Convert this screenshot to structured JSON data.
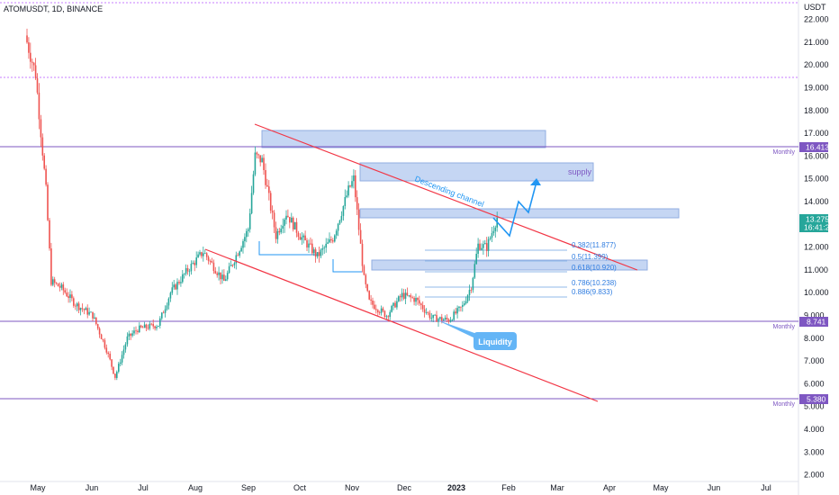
{
  "header": {
    "symbol_label": "ATOMUSDT, 1D, BINANCE"
  },
  "price_axis": {
    "currency": "USDT",
    "ticks": [
      "22.000",
      "21.000",
      "20.000",
      "19.000",
      "18.000",
      "17.000",
      "16.000",
      "15.000",
      "14.000",
      "13.000",
      "12.000",
      "11.000",
      "10.000",
      "9.000",
      "8.000",
      "7.000",
      "6.000",
      "5.000",
      "4.000",
      "3.000",
      "2.000"
    ]
  },
  "time_axis": {
    "ticks": [
      "May",
      "Jun",
      "Jul",
      "Aug",
      "Sep",
      "Oct",
      "Nov",
      "Dec",
      "2023",
      "Feb",
      "Mar",
      "Apr",
      "May",
      "Jun",
      "Jul"
    ]
  },
  "current_price": {
    "value": "13.275",
    "countdown": "16:41:24",
    "color": "#26a69a"
  },
  "levels": [
    {
      "value": "16.413",
      "tag": "Monthly",
      "color": "#7e57c2"
    },
    {
      "value": "8.741",
      "tag": "Monthly",
      "color": "#7e57c2"
    },
    {
      "value": "5.380",
      "tag": "Monthly",
      "color": "#7e57c2"
    }
  ],
  "fib_labels": [
    "0.382(11.877)",
    "0.5(11.399)",
    "0.618(10.920)",
    "0.786(10.238)",
    "0.886(9.833)"
  ],
  "annotations": {
    "supply": "supply",
    "channel": "Descending channel",
    "liquidity": "Liquidity"
  },
  "colors": {
    "up": "#26a69a",
    "down": "#ef5350",
    "channel": "#f23645",
    "zone_fill": "#bbd0f2",
    "zone_stroke": "#7e9fdc",
    "level": "#7e57c2",
    "projection": "#2196f3",
    "fib": "#90b8e8"
  },
  "chart_data": {
    "type": "candlestick",
    "symbol": "ATOMUSDT",
    "interval": "1D",
    "exchange": "BINANCE",
    "ylim": [
      1.8,
      22.8
    ],
    "closes": [
      {
        "x": "Apr 28",
        "y": 21.0
      },
      {
        "x": "May 3",
        "y": 19.6
      },
      {
        "x": "May 9",
        "y": 14.5
      },
      {
        "x": "May 12",
        "y": 10.5
      },
      {
        "x": "May 18",
        "y": 10.2
      },
      {
        "x": "May 26",
        "y": 9.5
      },
      {
        "x": "Jun 5",
        "y": 9.0
      },
      {
        "x": "Jun 13",
        "y": 7.5
      },
      {
        "x": "Jun 18",
        "y": 6.3
      },
      {
        "x": "Jun 25",
        "y": 8.0
      },
      {
        "x": "Jul 1",
        "y": 8.4
      },
      {
        "x": "Jul 13",
        "y": 8.6
      },
      {
        "x": "Jul 20",
        "y": 10.0
      },
      {
        "x": "Jul 30",
        "y": 11.0
      },
      {
        "x": "Aug 8",
        "y": 11.8
      },
      {
        "x": "Aug 20",
        "y": 10.5
      },
      {
        "x": "Aug 28",
        "y": 11.8
      },
      {
        "x": "Sep 3",
        "y": 12.8
      },
      {
        "x": "Sep 7",
        "y": 16.0
      },
      {
        "x": "Sep 11",
        "y": 15.8
      },
      {
        "x": "Sep 19",
        "y": 12.5
      },
      {
        "x": "Sep 25",
        "y": 13.5
      },
      {
        "x": "Oct 3",
        "y": 12.5
      },
      {
        "x": "Oct 13",
        "y": 11.6
      },
      {
        "x": "Oct 22",
        "y": 12.4
      },
      {
        "x": "Oct 31",
        "y": 14.5
      },
      {
        "x": "Nov 3",
        "y": 15.0
      },
      {
        "x": "Nov 9",
        "y": 10.6
      },
      {
        "x": "Nov 12",
        "y": 9.6
      },
      {
        "x": "Nov 22",
        "y": 9.0
      },
      {
        "x": "Dec 1",
        "y": 9.9
      },
      {
        "x": "Dec 9",
        "y": 9.7
      },
      {
        "x": "Dec 18",
        "y": 8.9
      },
      {
        "x": "Dec 28",
        "y": 8.8
      },
      {
        "x": "Jan 5",
        "y": 9.4
      },
      {
        "x": "Jan 10",
        "y": 10.3
      },
      {
        "x": "Jan 14",
        "y": 12.1
      },
      {
        "x": "Jan 19",
        "y": 12.0
      },
      {
        "x": "Jan 25",
        "y": 13.3
      }
    ],
    "horizontal_levels": [
      16.413,
      8.741,
      5.38
    ],
    "fibonacci": [
      {
        "ratio": 0.382,
        "price": 11.877
      },
      {
        "ratio": 0.5,
        "price": 11.399
      },
      {
        "ratio": 0.618,
        "price": 10.92
      },
      {
        "ratio": 0.786,
        "price": 10.238
      },
      {
        "ratio": 0.886,
        "price": 9.833
      }
    ]
  }
}
